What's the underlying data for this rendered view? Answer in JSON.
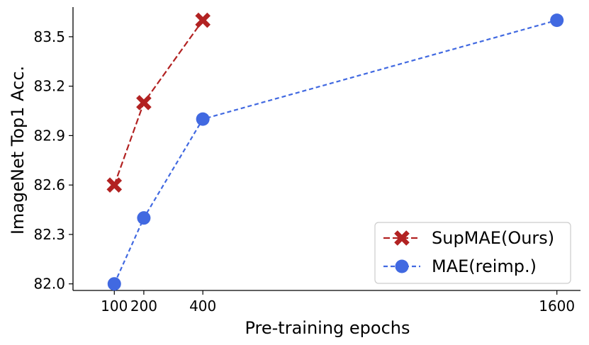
{
  "chart_data": {
    "type": "line",
    "title": "",
    "xlabel": "Pre-training epochs",
    "ylabel": "ImageNet Top1 Acc.",
    "xlim": [
      -40,
      1680
    ],
    "ylim": [
      81.96,
      83.68
    ],
    "x_ticks": [
      100,
      200,
      400,
      1600
    ],
    "x_tick_labels": [
      "100",
      "200",
      "400",
      "1600"
    ],
    "y_ticks": [
      82.0,
      82.3,
      82.6,
      82.9,
      83.2,
      83.5
    ],
    "y_tick_labels": [
      "82.0",
      "82.3",
      "82.6",
      "82.9",
      "83.2",
      "83.5"
    ],
    "grid": false,
    "legend_position": "lower-right",
    "series": [
      {
        "name": "SupMAE(Ours)",
        "x": [
          100,
          200,
          400
        ],
        "y": [
          82.6,
          83.1,
          83.6
        ],
        "color": "#b22222",
        "marker": "x-marker",
        "line_style": "dashed"
      },
      {
        "name": "MAE(reimp.)",
        "x": [
          100,
          200,
          400,
          1600
        ],
        "y": [
          82.0,
          82.4,
          83.0,
          83.6
        ],
        "color": "#4169e1",
        "marker": "circle-marker",
        "line_style": "dashed"
      }
    ]
  }
}
